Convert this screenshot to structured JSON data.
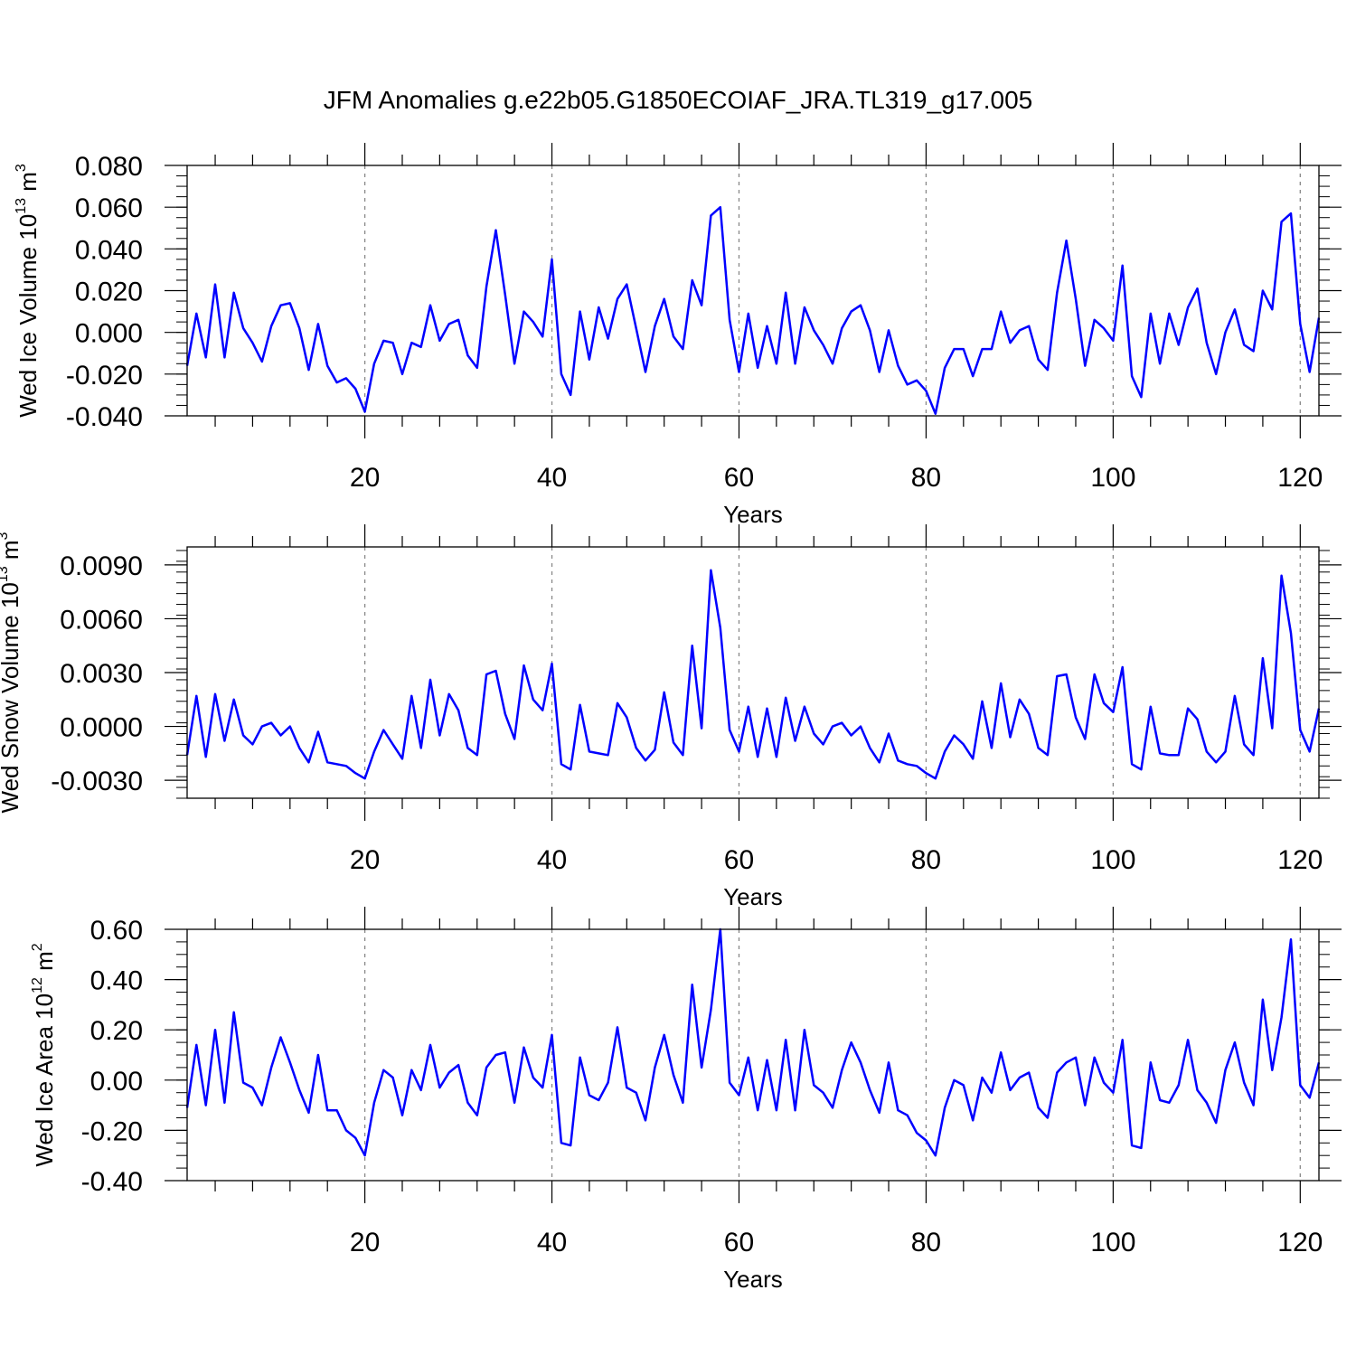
{
  "title": "JFM Anomalies g.e22b05.G1850ECOIAF_JRA.TL319_g17.005",
  "line_color": "#0000ff",
  "reference_line_color": "#888888",
  "chart_data": [
    {
      "type": "line",
      "ylabel_main": "Wed Ice Volume 10",
      "ylabel_sup": "13",
      "ylabel_unit": "m",
      "ylabel_unit_sup": "3",
      "xlabel": "Years",
      "xlim": [
        1,
        122
      ],
      "ylim": [
        -0.04,
        0.08
      ],
      "ymajor": [
        -0.04,
        -0.02,
        0.0,
        0.02,
        0.04,
        0.06,
        0.08
      ],
      "ytick_labels": [
        "-0.040",
        "-0.020",
        "0.000",
        "0.020",
        "0.040",
        "0.060",
        "0.080"
      ],
      "yminor_step": 0.005,
      "xmajor": [
        20,
        40,
        60,
        80,
        100,
        120
      ],
      "xtick_labels": [
        "20",
        "40",
        "60",
        "80",
        "100",
        "120"
      ],
      "xminor_step": 4,
      "vlines": [
        20,
        40,
        60,
        80,
        100,
        120
      ],
      "x_start": 1,
      "values": [
        -0.016,
        0.009,
        -0.012,
        0.023,
        -0.012,
        0.019,
        0.002,
        -0.005,
        -0.014,
        0.003,
        0.013,
        0.014,
        0.002,
        -0.018,
        0.004,
        -0.016,
        -0.024,
        -0.022,
        -0.027,
        -0.038,
        -0.015,
        -0.004,
        -0.005,
        -0.02,
        -0.005,
        -0.007,
        0.013,
        -0.004,
        0.004,
        0.006,
        -0.011,
        -0.017,
        0.022,
        0.049,
        0.018,
        -0.015,
        0.01,
        0.005,
        -0.002,
        0.035,
        -0.02,
        -0.03,
        0.01,
        -0.013,
        0.012,
        -0.003,
        0.016,
        0.023,
        0.002,
        -0.019,
        0.003,
        0.016,
        -0.002,
        -0.008,
        0.025,
        0.013,
        0.056,
        0.06,
        0.006,
        -0.019,
        0.009,
        -0.017,
        0.003,
        -0.015,
        0.019,
        -0.015,
        0.012,
        0.001,
        -0.006,
        -0.015,
        0.002,
        0.01,
        0.013,
        0.001,
        -0.019,
        0.001,
        -0.016,
        -0.025,
        -0.023,
        -0.028,
        -0.039,
        -0.017,
        -0.008,
        -0.008,
        -0.021,
        -0.008,
        -0.008,
        0.01,
        -0.005,
        0.001,
        0.003,
        -0.013,
        -0.018,
        0.019,
        0.044,
        0.016,
        -0.016,
        0.006,
        0.002,
        -0.004,
        0.032,
        -0.021,
        -0.031,
        0.009,
        -0.015,
        0.009,
        -0.006,
        0.012,
        0.021,
        -0.005,
        -0.02,
        0.0,
        0.011,
        -0.006,
        -0.009,
        0.02,
        0.011,
        0.053,
        0.057,
        0.004,
        -0.019,
        0.007
      ]
    },
    {
      "type": "line",
      "ylabel_main": "Wed Snow Volume 10",
      "ylabel_sup": "13",
      "ylabel_unit": "m",
      "ylabel_unit_sup": "3",
      "xlabel": "Years",
      "xlim": [
        1,
        122
      ],
      "ylim": [
        -0.004,
        0.01
      ],
      "ymajor": [
        -0.003,
        0.0,
        0.003,
        0.006,
        0.009
      ],
      "ytick_labels": [
        "-0.0030",
        "0.0000",
        "0.0030",
        "0.0060",
        "0.0090"
      ],
      "yminor_step": 0.0006,
      "xmajor": [
        20,
        40,
        60,
        80,
        100,
        120
      ],
      "xtick_labels": [
        "20",
        "40",
        "60",
        "80",
        "100",
        "120"
      ],
      "xminor_step": 4,
      "vlines": [
        20,
        40,
        60,
        80,
        100,
        120
      ],
      "x_start": 1,
      "values": [
        -0.0016,
        0.0017,
        -0.0017,
        0.0018,
        -0.0008,
        0.0015,
        -0.0005,
        -0.001,
        0.0,
        0.0002,
        -0.0005,
        0.0,
        -0.0012,
        -0.002,
        -0.0003,
        -0.002,
        -0.0021,
        -0.0022,
        -0.0026,
        -0.0029,
        -0.0014,
        -0.0002,
        -0.001,
        -0.0018,
        0.0017,
        -0.0012,
        0.0026,
        -0.0005,
        0.0018,
        0.0009,
        -0.0012,
        -0.0016,
        0.0029,
        0.0031,
        0.0007,
        -0.0007,
        0.0034,
        0.0015,
        0.0009,
        0.0035,
        -0.0021,
        -0.0024,
        0.0012,
        -0.0014,
        -0.0015,
        -0.0016,
        0.0013,
        0.0005,
        -0.0012,
        -0.0019,
        -0.0013,
        0.0019,
        -0.0009,
        -0.0016,
        0.0045,
        -0.0001,
        0.0087,
        0.0055,
        -0.0002,
        -0.0014,
        0.0011,
        -0.0017,
        0.001,
        -0.0017,
        0.0016,
        -0.0008,
        0.0011,
        -0.0004,
        -0.001,
        0.0,
        0.0002,
        -0.0005,
        0.0,
        -0.0012,
        -0.002,
        -0.0004,
        -0.0019,
        -0.0021,
        -0.0022,
        -0.0026,
        -0.0029,
        -0.0014,
        -0.0005,
        -0.001,
        -0.0018,
        0.0014,
        -0.0012,
        0.0024,
        -0.0006,
        0.0015,
        0.0007,
        -0.0012,
        -0.0016,
        0.0028,
        0.0029,
        0.0005,
        -0.0007,
        0.0029,
        0.0013,
        0.0008,
        0.0033,
        -0.0021,
        -0.0024,
        0.0011,
        -0.0015,
        -0.0016,
        -0.0016,
        0.001,
        0.0004,
        -0.0014,
        -0.002,
        -0.0014,
        0.0017,
        -0.001,
        -0.0016,
        0.0038,
        -0.0001,
        0.0084,
        0.0052,
        -0.0002,
        -0.0014,
        0.001
      ]
    },
    {
      "type": "line",
      "ylabel_main": "Wed Ice Area 10",
      "ylabel_sup": "12",
      "ylabel_unit": "m",
      "ylabel_unit_sup": "2",
      "xlabel": "Years",
      "xlim": [
        1,
        122
      ],
      "ylim": [
        -0.4,
        0.6
      ],
      "ymajor": [
        -0.4,
        -0.2,
        0.0,
        0.2,
        0.4,
        0.6
      ],
      "ytick_labels": [
        "-0.40",
        "-0.20",
        "0.00",
        "0.20",
        "0.40",
        "0.60"
      ],
      "yminor_step": 0.05,
      "xmajor": [
        20,
        40,
        60,
        80,
        100,
        120
      ],
      "xtick_labels": [
        "20",
        "40",
        "60",
        "80",
        "100",
        "120"
      ],
      "xminor_step": 4,
      "vlines": [
        20,
        40,
        60,
        80,
        100,
        120
      ],
      "x_start": 1,
      "values": [
        -0.11,
        0.14,
        -0.1,
        0.2,
        -0.09,
        0.27,
        -0.01,
        -0.03,
        -0.1,
        0.05,
        0.17,
        0.07,
        -0.04,
        -0.13,
        0.1,
        -0.12,
        -0.12,
        -0.2,
        -0.23,
        -0.3,
        -0.09,
        0.04,
        0.01,
        -0.14,
        0.04,
        -0.04,
        0.14,
        -0.03,
        0.03,
        0.06,
        -0.09,
        -0.14,
        0.05,
        0.1,
        0.11,
        -0.09,
        0.13,
        0.01,
        -0.03,
        0.18,
        -0.25,
        -0.26,
        0.09,
        -0.06,
        -0.08,
        -0.01,
        0.21,
        -0.03,
        -0.05,
        -0.16,
        0.05,
        0.18,
        0.02,
        -0.09,
        0.38,
        0.05,
        0.28,
        0.6,
        -0.01,
        -0.06,
        0.09,
        -0.12,
        0.08,
        -0.12,
        0.16,
        -0.12,
        0.2,
        -0.02,
        -0.05,
        -0.11,
        0.04,
        0.15,
        0.07,
        -0.04,
        -0.13,
        0.07,
        -0.12,
        -0.14,
        -0.21,
        -0.24,
        -0.3,
        -0.11,
        0.0,
        -0.02,
        -0.16,
        0.01,
        -0.05,
        0.11,
        -0.04,
        0.01,
        0.03,
        -0.11,
        -0.15,
        0.03,
        0.07,
        0.09,
        -0.1,
        0.09,
        -0.01,
        -0.05,
        0.16,
        -0.26,
        -0.27,
        0.07,
        -0.08,
        -0.09,
        -0.02,
        0.16,
        -0.04,
        -0.09,
        -0.17,
        0.04,
        0.15,
        -0.01,
        -0.1,
        0.32,
        0.04,
        0.25,
        0.56,
        -0.02,
        -0.07,
        0.07
      ]
    }
  ]
}
